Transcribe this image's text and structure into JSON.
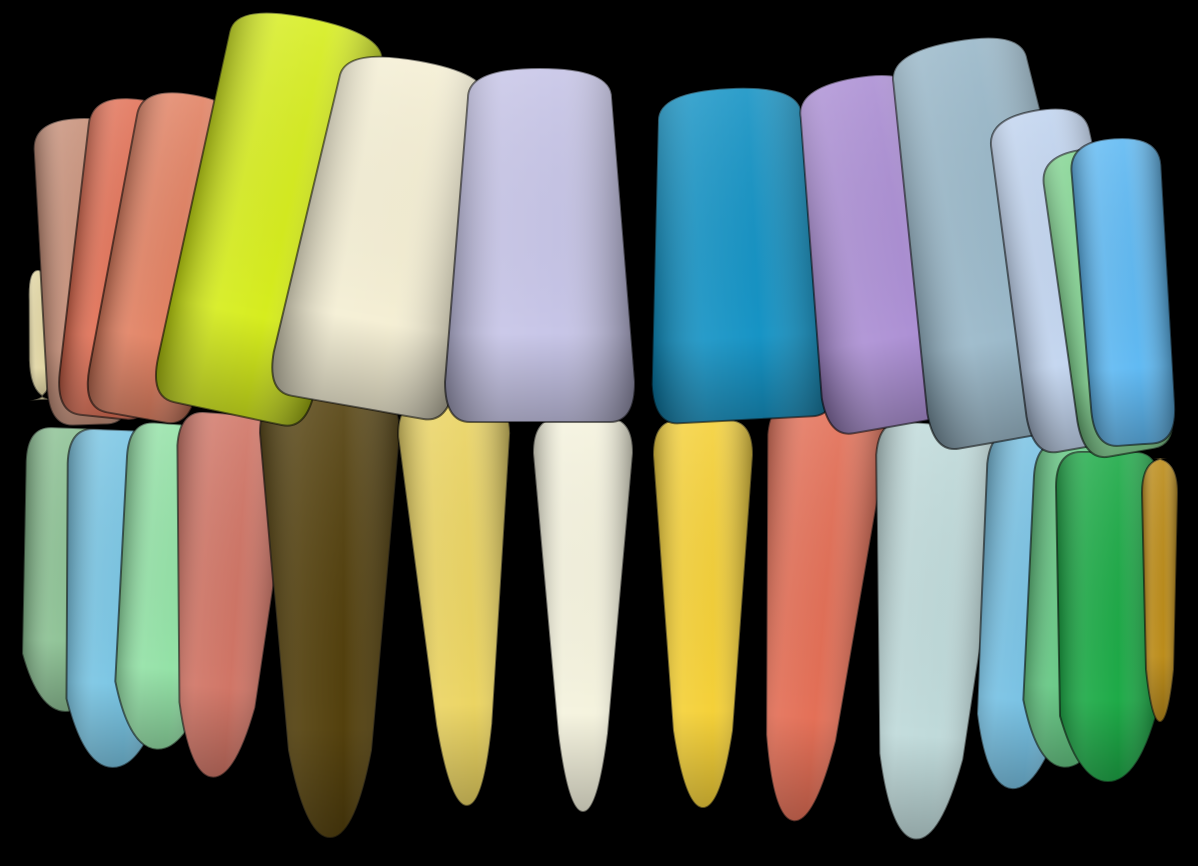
{
  "scene": {
    "background": "#000000",
    "subject": "segmented-teeth-render",
    "upper_arch": [
      {
        "id": "upper-1",
        "color": "#E0D4A0"
      },
      {
        "id": "upper-2",
        "color": "#C48A72"
      },
      {
        "id": "upper-3",
        "color": "#E06A4E"
      },
      {
        "id": "upper-4",
        "color": "#E07C5C"
      },
      {
        "id": "upper-5",
        "color": "#D4EC12"
      },
      {
        "id": "upper-6",
        "color": "#F4EED2"
      },
      {
        "id": "upper-7",
        "color": "#C4C2E6"
      },
      {
        "id": "upper-8",
        "color": "#0A8EC2"
      },
      {
        "id": "upper-9",
        "color": "#A88AD2"
      },
      {
        "id": "upper-10",
        "color": "#94B4C6"
      },
      {
        "id": "upper-11",
        "color": "#BED2EE"
      },
      {
        "id": "upper-12",
        "color": "#7CD28C"
      },
      {
        "id": "upper-13",
        "color": "#58B6F2"
      }
    ],
    "lower_arch": [
      {
        "id": "lower-1",
        "color": "#86BE8E"
      },
      {
        "id": "lower-2",
        "color": "#72C2E2"
      },
      {
        "id": "lower-3",
        "color": "#8EE0A2"
      },
      {
        "id": "lower-4",
        "color": "#CE6E5E"
      },
      {
        "id": "lower-5",
        "color": "#4A3600"
      },
      {
        "id": "lower-6",
        "color": "#EAD25A"
      },
      {
        "id": "lower-7",
        "color": "#F4F2DC"
      },
      {
        "id": "lower-8",
        "color": "#F4CE2E"
      },
      {
        "id": "lower-9",
        "color": "#E2684E"
      },
      {
        "id": "lower-10",
        "color": "#BCD8D8"
      },
      {
        "id": "lower-11",
        "color": "#70BEE2"
      },
      {
        "id": "lower-12",
        "color": "#5CC47C"
      },
      {
        "id": "lower-13",
        "color": "#12A63E"
      },
      {
        "id": "lower-14",
        "color": "#B8860E"
      }
    ]
  }
}
